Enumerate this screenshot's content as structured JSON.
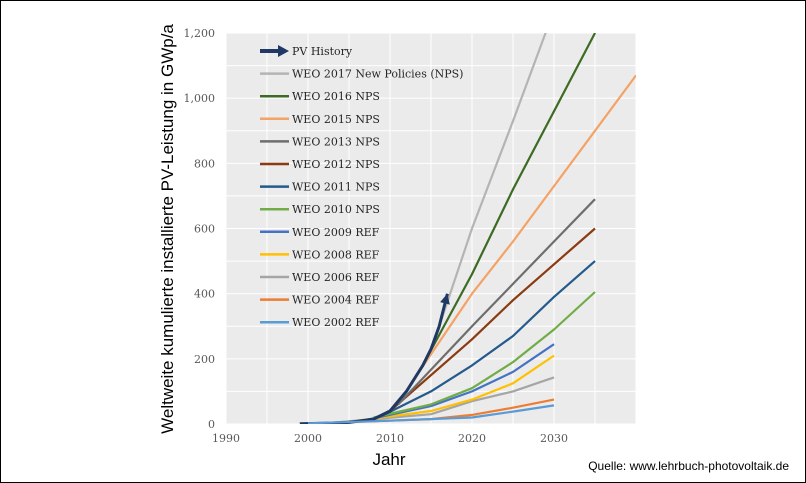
{
  "chart_data": {
    "type": "line",
    "title": "",
    "xlabel": "Jahr",
    "ylabel": "Weltweite kumulierte installierte PV-Leistung in GWp/a",
    "xlim": [
      1990,
      2040
    ],
    "ylim": [
      0,
      1200
    ],
    "x_ticks": [
      "1990",
      "2000",
      "2010",
      "2020",
      "2030"
    ],
    "y_ticks": [
      "0",
      "200",
      "400",
      "600",
      "800",
      "1,000",
      "1,200"
    ],
    "grid": true,
    "legend_position": "top-left",
    "series": [
      {
        "name": "PV History",
        "color": "#1f3864",
        "arrow": true,
        "points": [
          [
            1999,
            1
          ],
          [
            2002,
            2
          ],
          [
            2005,
            5
          ],
          [
            2008,
            15
          ],
          [
            2010,
            40
          ],
          [
            2012,
            100
          ],
          [
            2014,
            180
          ],
          [
            2015,
            230
          ],
          [
            2016,
            300
          ],
          [
            2017,
            400
          ]
        ]
      },
      {
        "name": "WEO 2017 New Policies (NPS)",
        "color": "#b4b4b4",
        "points": [
          [
            2016,
            300
          ],
          [
            2020,
            600
          ],
          [
            2025,
            930
          ],
          [
            2030,
            1270
          ]
        ]
      },
      {
        "name": "WEO 2016 NPS",
        "color": "#3d6b24",
        "points": [
          [
            2014,
            180
          ],
          [
            2020,
            460
          ],
          [
            2025,
            720
          ],
          [
            2030,
            960
          ],
          [
            2035,
            1200
          ]
        ]
      },
      {
        "name": "WEO 2015 NPS",
        "color": "#f4a266",
        "points": [
          [
            2013,
            140
          ],
          [
            2020,
            400
          ],
          [
            2025,
            560
          ],
          [
            2030,
            730
          ],
          [
            2035,
            900
          ],
          [
            2040,
            1070
          ]
        ]
      },
      {
        "name": "WEO 2013 NPS",
        "color": "#6e6e6e",
        "points": [
          [
            2011,
            60
          ],
          [
            2020,
            300
          ],
          [
            2025,
            430
          ],
          [
            2030,
            560
          ],
          [
            2035,
            690
          ]
        ]
      },
      {
        "name": "WEO 2012 NPS",
        "color": "#8b3a12",
        "points": [
          [
            2010,
            40
          ],
          [
            2020,
            260
          ],
          [
            2025,
            380
          ],
          [
            2030,
            490
          ],
          [
            2035,
            600
          ]
        ]
      },
      {
        "name": "WEO 2011 NPS",
        "color": "#245a8c",
        "points": [
          [
            2009,
            25
          ],
          [
            2015,
            100
          ],
          [
            2020,
            180
          ],
          [
            2025,
            270
          ],
          [
            2030,
            390
          ],
          [
            2035,
            500
          ]
        ]
      },
      {
        "name": "WEO 2010 NPS",
        "color": "#70ad47",
        "points": [
          [
            2008,
            20
          ],
          [
            2015,
            60
          ],
          [
            2020,
            110
          ],
          [
            2025,
            190
          ],
          [
            2030,
            290
          ],
          [
            2035,
            405
          ]
        ]
      },
      {
        "name": "WEO 2009 REF",
        "color": "#4472c4",
        "points": [
          [
            2007,
            12
          ],
          [
            2015,
            55
          ],
          [
            2020,
            100
          ],
          [
            2025,
            160
          ],
          [
            2030,
            245
          ]
        ]
      },
      {
        "name": "WEO 2008 REF",
        "color": "#ffc000",
        "points": [
          [
            2006,
            10
          ],
          [
            2015,
            40
          ],
          [
            2020,
            75
          ],
          [
            2025,
            125
          ],
          [
            2030,
            210
          ]
        ]
      },
      {
        "name": "WEO 2006 REF",
        "color": "#a5a5a5",
        "points": [
          [
            2004,
            6
          ],
          [
            2015,
            30
          ],
          [
            2020,
            70
          ],
          [
            2025,
            100
          ],
          [
            2030,
            143
          ]
        ]
      },
      {
        "name": "WEO 2004 REF",
        "color": "#ed7d31",
        "points": [
          [
            2002,
            3
          ],
          [
            2015,
            15
          ],
          [
            2020,
            28
          ],
          [
            2025,
            50
          ],
          [
            2030,
            75
          ]
        ]
      },
      {
        "name": "WEO 2002 REF",
        "color": "#5b9bd5",
        "points": [
          [
            2000,
            2
          ],
          [
            2010,
            10
          ],
          [
            2020,
            20
          ],
          [
            2025,
            38
          ],
          [
            2030,
            57
          ]
        ]
      }
    ]
  },
  "source": "Quelle: www.lehrbuch-photovoltaik.de"
}
